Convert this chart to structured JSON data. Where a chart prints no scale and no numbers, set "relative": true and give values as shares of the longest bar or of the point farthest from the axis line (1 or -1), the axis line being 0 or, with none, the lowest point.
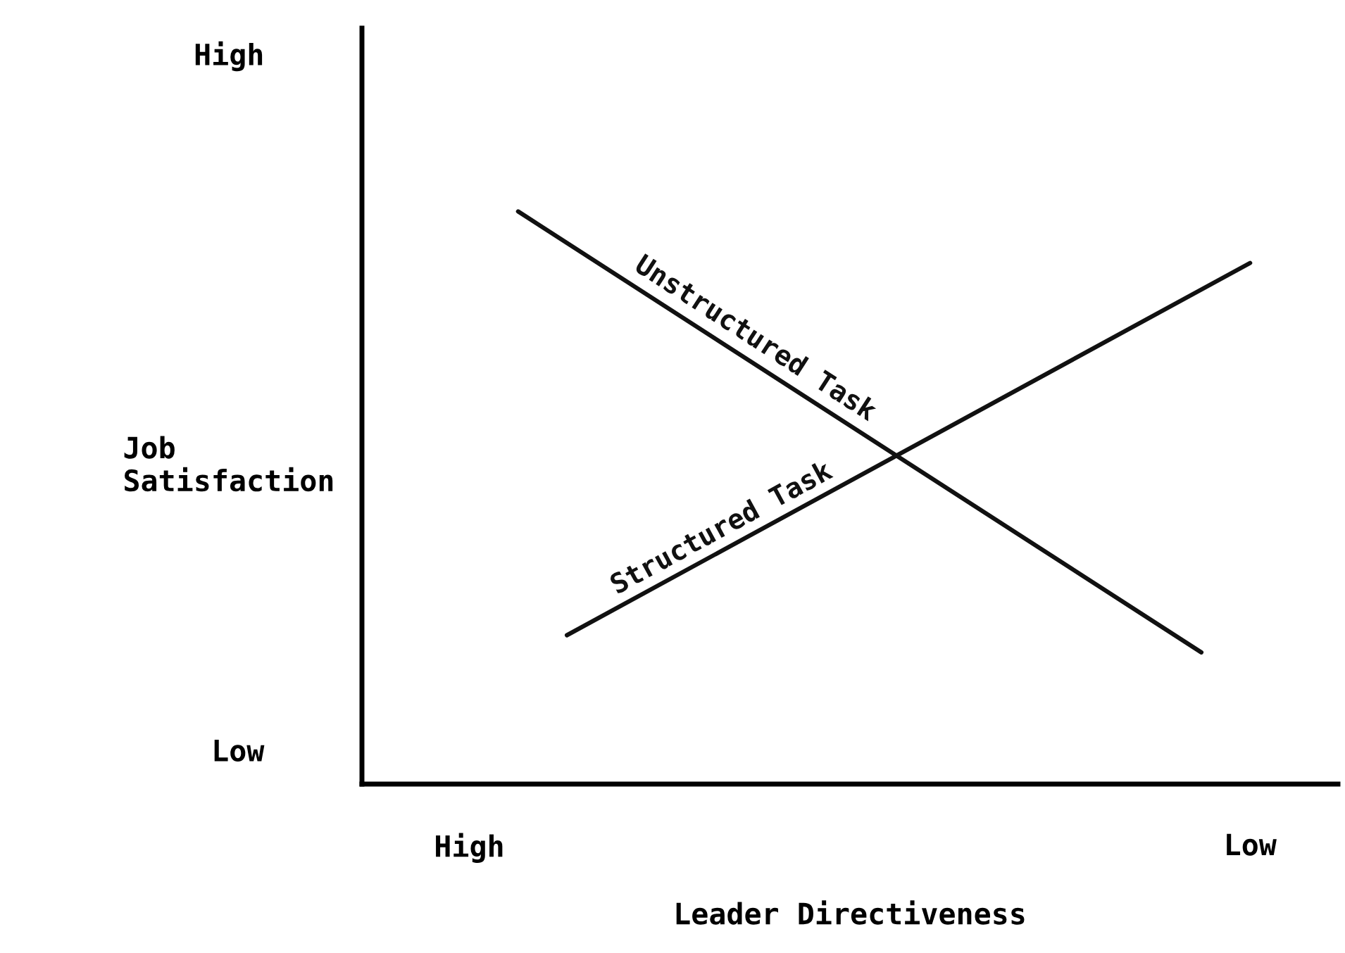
{
  "chart_data": {
    "type": "line",
    "xlabel": "Leader Directiveness",
    "ylabel": "Job\nSatisfaction",
    "relative": true,
    "categories": [
      "High",
      null,
      null,
      null,
      null,
      null,
      null,
      null,
      null,
      null,
      null,
      null,
      null,
      null,
      null,
      null,
      "Low"
    ],
    "annotations": [
      "High",
      "Low"
    ],
    "series": [
      {
        "name": "Unstructured Task",
        "color": "#111111",
        "values": [
          null,
          1,
          null,
          null,
          null,
          null,
          null,
          null,
          null,
          null,
          null,
          null,
          null,
          null,
          null,
          0.23,
          null
        ]
      },
      {
        "name": "Structured Task",
        "color": "#111111",
        "values": [
          null,
          null,
          0.26,
          null,
          null,
          null,
          null,
          null,
          null,
          null,
          null,
          null,
          null,
          null,
          null,
          null,
          0.91
        ]
      }
    ],
    "grid": false,
    "legend": false,
    "marker": "none",
    "line_style": "solid"
  }
}
